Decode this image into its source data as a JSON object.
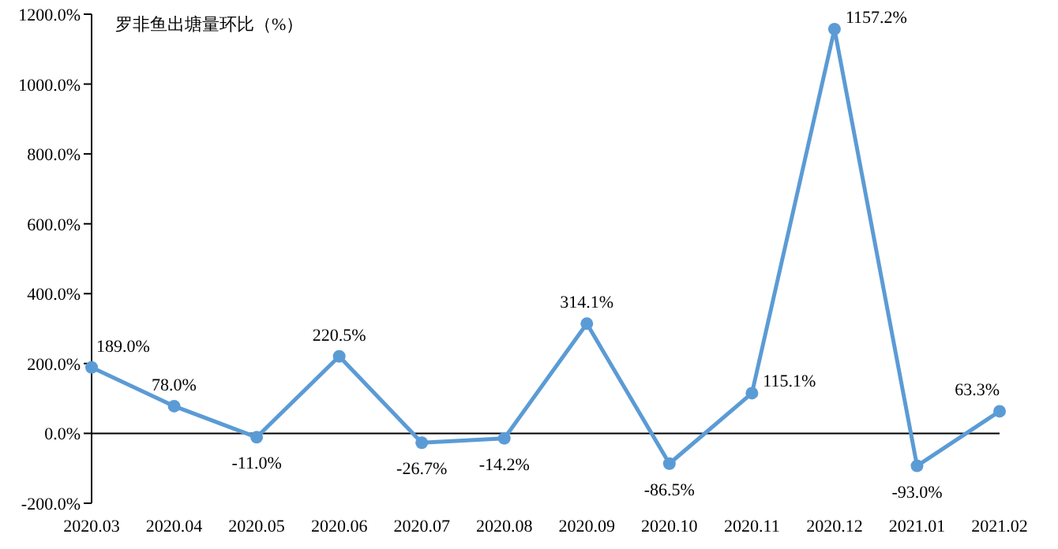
{
  "chart_data": {
    "type": "line",
    "title": "罗非鱼出塘量环比（%）",
    "categories": [
      "2020.03",
      "2020.04",
      "2020.05",
      "2020.06",
      "2020.07",
      "2020.08",
      "2020.09",
      "2020.10",
      "2020.11",
      "2020.12",
      "2021.01",
      "2021.02"
    ],
    "values": [
      189.0,
      78.0,
      -11.0,
      220.5,
      -26.7,
      -14.2,
      314.1,
      -86.5,
      115.1,
      1157.2,
      -93.0,
      63.3
    ],
    "value_labels": [
      "189.0%",
      "78.0%",
      "-11.0%",
      "220.5%",
      "-26.7%",
      "-14.2%",
      "314.1%",
      "-86.5%",
      "115.1%",
      "1157.2%",
      "-93.0%",
      "63.3%"
    ],
    "color": "#5b9bd5",
    "marker": "circle",
    "line_style": "solid",
    "ylim": [
      -200,
      1200
    ],
    "yticks": [
      {
        "value": -200,
        "label": "-200.0%"
      },
      {
        "value": 0,
        "label": "0.0%"
      },
      {
        "value": 200,
        "label": "200.0%"
      },
      {
        "value": 400,
        "label": "400.0%"
      },
      {
        "value": 600,
        "label": "600.0%"
      },
      {
        "value": 800,
        "label": "800.0%"
      },
      {
        "value": 1000,
        "label": "1000.0%"
      },
      {
        "value": 1200,
        "label": "1200.0%"
      }
    ]
  }
}
